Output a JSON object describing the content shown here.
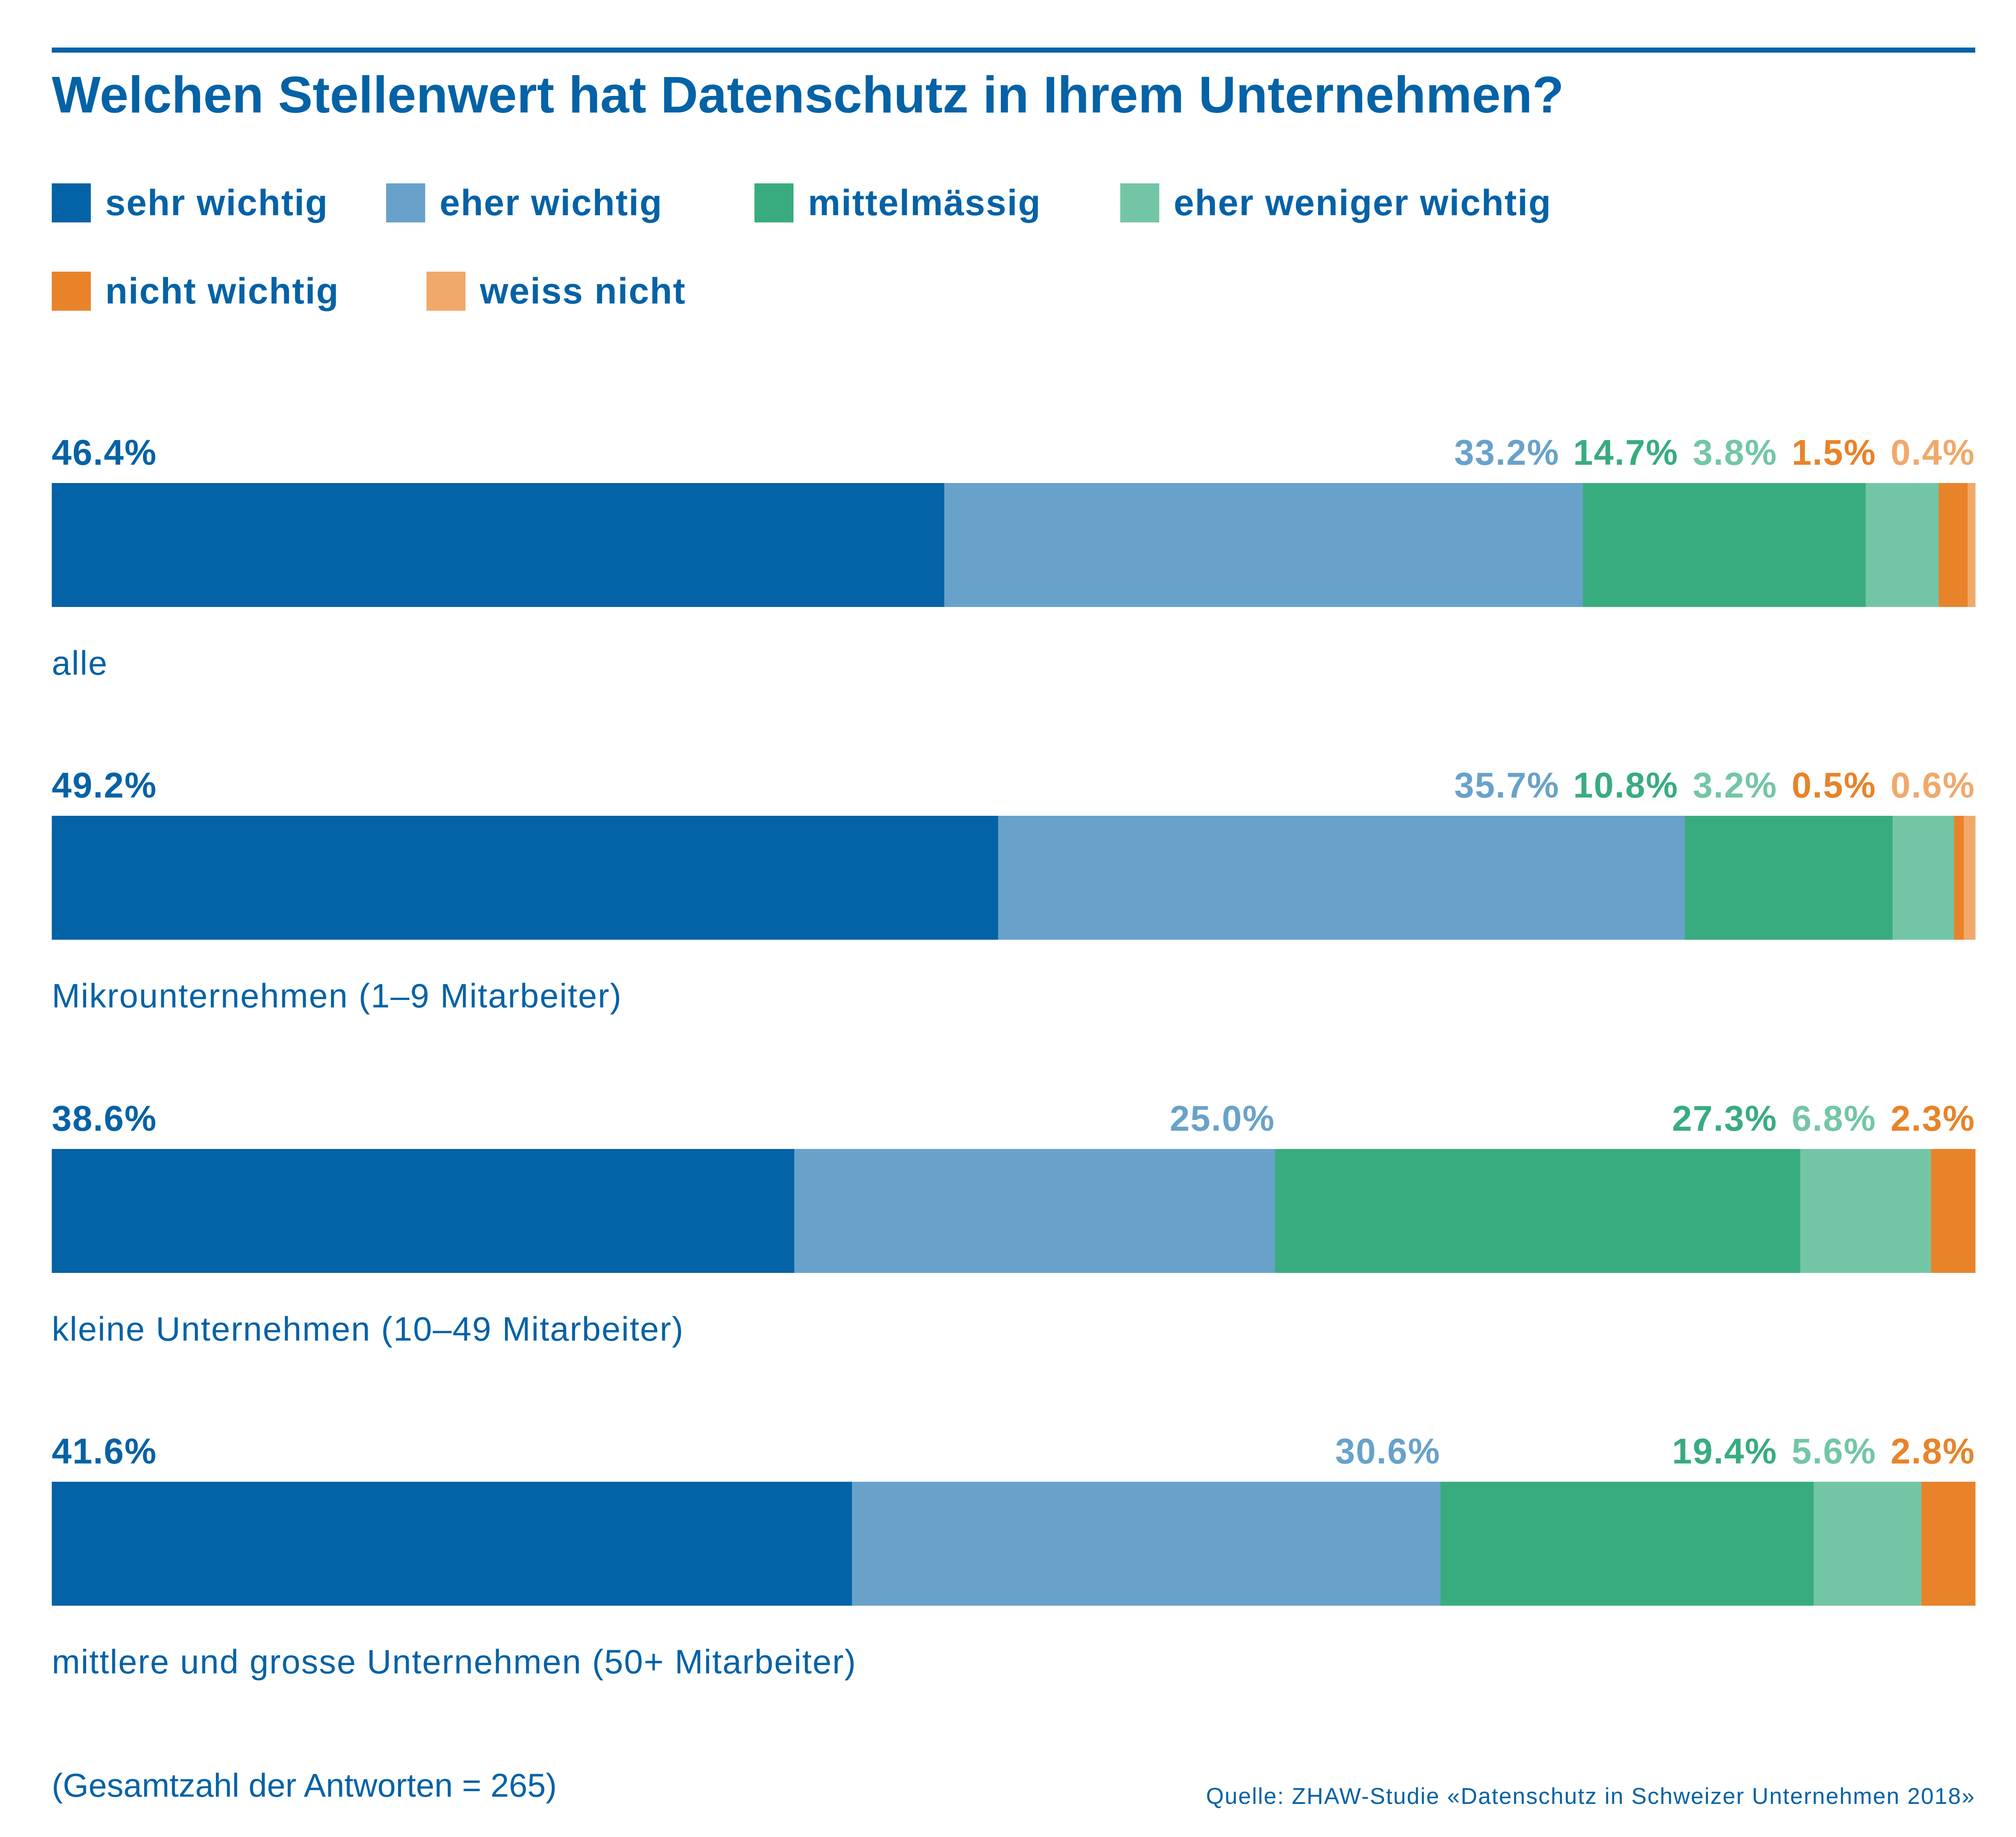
{
  "title": "Welchen Stellenwert hat Datenschutz in Ihrem Unternehmen?",
  "colors": {
    "text": "#0462A6",
    "sehr_wichtig": "#0462A6",
    "eher_wichtig": "#68A2CA",
    "mittelmaessig": "#39AC7F",
    "eher_weniger_wichtig": "#73C6A5",
    "nicht_wichtig": "#E8832A",
    "weiss_nicht": "#F0A96A"
  },
  "note": "(Gesamtzahl der Antworten = 265)",
  "source": "Quelle: ZHAW-Studie «Datenschutz in Schweizer Unternehmen 2018»",
  "chart_data": {
    "type": "bar",
    "orientation": "horizontal",
    "stacked": true,
    "title": "Welchen Stellenwert hat Datenschutz in Ihrem Unternehmen?",
    "legend_position": "top-left",
    "grid": false,
    "xlim": [
      0,
      100
    ],
    "categories": [
      "alle",
      "Mikrounternehmen (1–9 Mitarbeiter)",
      "kleine Unternehmen (10–49 Mitarbeiter)",
      "mittlere und grosse Unternehmen (50+ Mitarbeiter)"
    ],
    "series": [
      {
        "name": "sehr wichtig",
        "color": "#0462A6",
        "values": [
          46.4,
          49.2,
          38.6,
          41.6
        ],
        "labels": [
          "46.4%",
          "49.2%",
          "38.6%",
          "41.6%"
        ]
      },
      {
        "name": "eher wichtig",
        "color": "#68A2CA",
        "values": [
          33.2,
          35.7,
          25.0,
          30.6
        ],
        "labels": [
          "33.2%",
          "35.7%",
          "25.0%",
          "30.6%"
        ]
      },
      {
        "name": "mittelmässig",
        "color": "#39AC7F",
        "values": [
          14.7,
          10.8,
          27.3,
          19.4
        ],
        "labels": [
          "14.7%",
          "10.8%",
          "27.3%",
          "19.4%"
        ]
      },
      {
        "name": "eher weniger wichtig",
        "color": "#73C6A5",
        "values": [
          3.8,
          3.2,
          6.8,
          5.6
        ],
        "labels": [
          "3.8%",
          "3.2%",
          "6.8%",
          "5.6%"
        ]
      },
      {
        "name": "nicht wichtig",
        "color": "#E8832A",
        "values": [
          1.5,
          0.5,
          2.3,
          2.8
        ],
        "labels": [
          "1.5%",
          "0.5%",
          "2.3%",
          "2.8%"
        ]
      },
      {
        "name": "weiss nicht",
        "color": "#F0A96A",
        "values": [
          0.4,
          0.6,
          0,
          0
        ],
        "labels": [
          "0.4%",
          "0.6%",
          "",
          ""
        ]
      }
    ]
  }
}
